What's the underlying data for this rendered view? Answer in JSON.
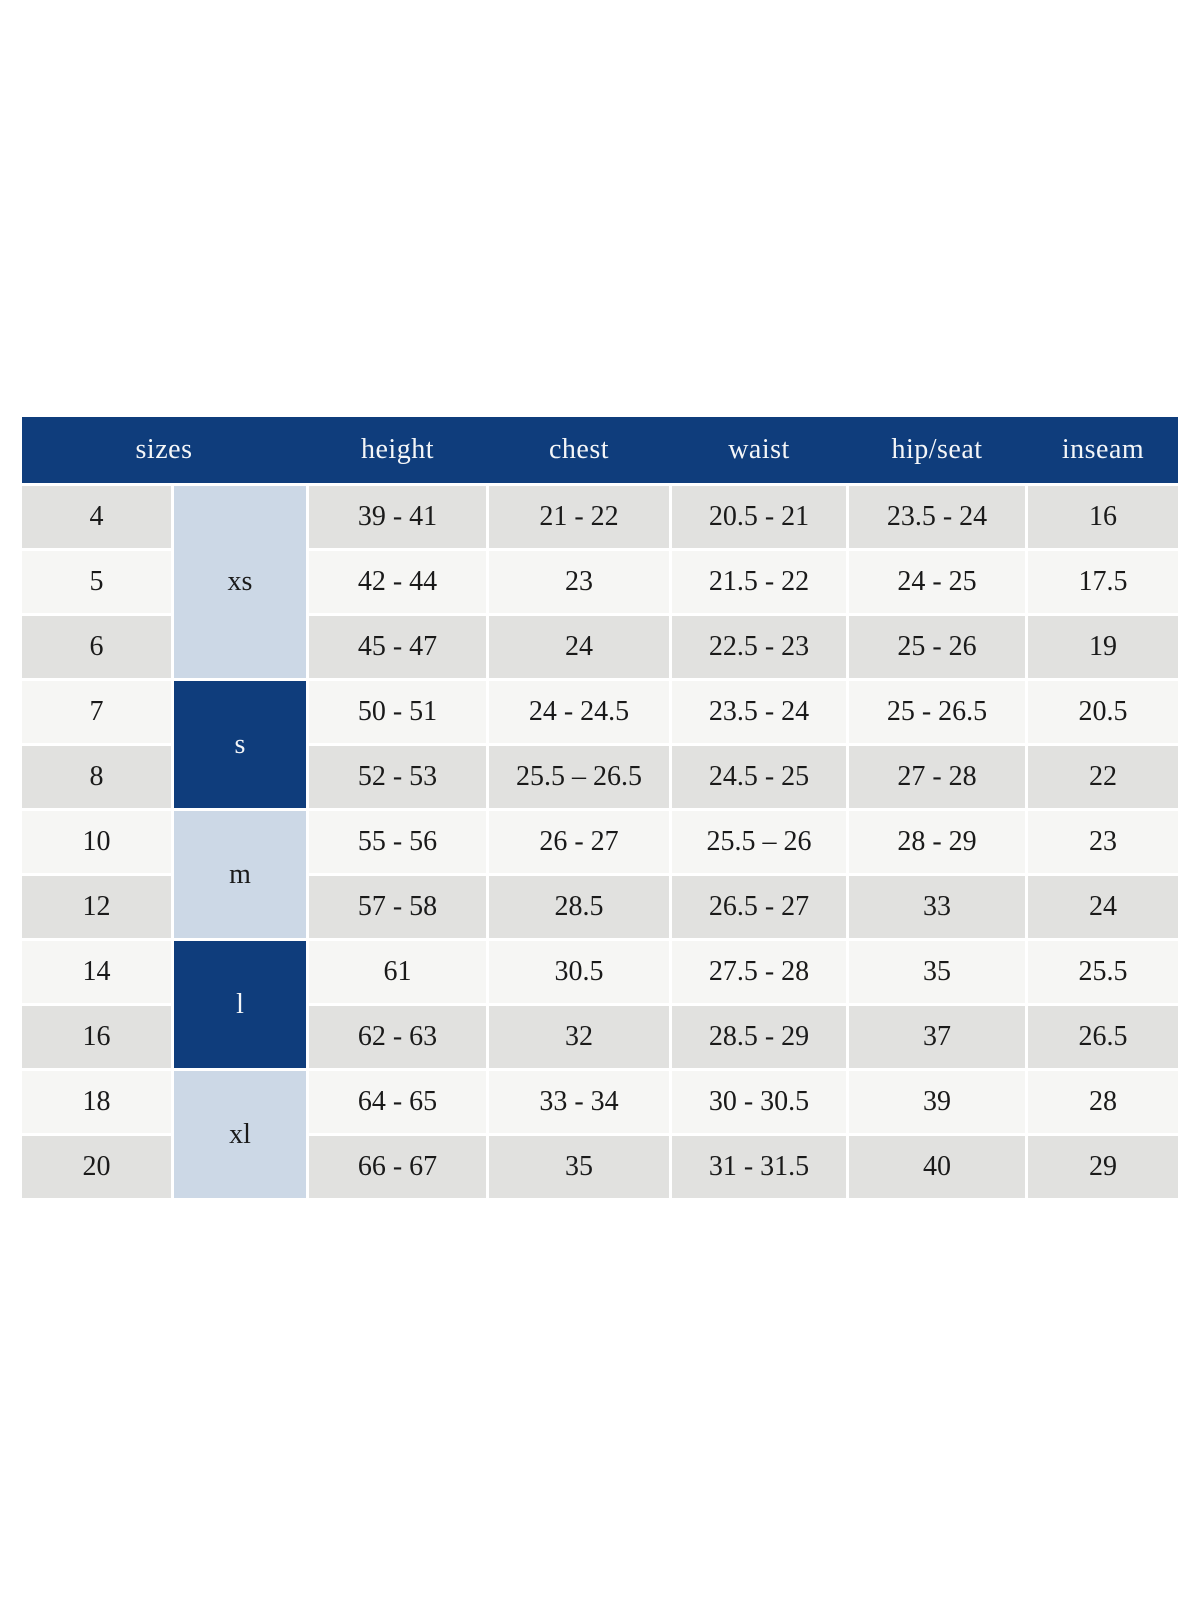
{
  "chart_data": {
    "type": "table",
    "header": {
      "sizes": "sizes",
      "height": "height",
      "chest": "chest",
      "waist": "waist",
      "hip_seat": "hip/seat",
      "inseam": "inseam"
    },
    "rows": [
      {
        "size": "4",
        "group": "xs",
        "height": "39 - 41",
        "chest": "21 - 22",
        "waist": "20.5 - 21",
        "hip_seat": "23.5 - 24",
        "inseam": "16"
      },
      {
        "size": "5",
        "group": "xs",
        "height": "42 - 44",
        "chest": "23",
        "waist": "21.5 - 22",
        "hip_seat": "24 - 25",
        "inseam": "17.5"
      },
      {
        "size": "6",
        "group": "xs",
        "height": "45 - 47",
        "chest": "24",
        "waist": "22.5 - 23",
        "hip_seat": "25 - 26",
        "inseam": "19"
      },
      {
        "size": "7",
        "group": "s",
        "height": "50 - 51",
        "chest": "24 - 24.5",
        "waist": "23.5 - 24",
        "hip_seat": "25 - 26.5",
        "inseam": "20.5"
      },
      {
        "size": "8",
        "group": "s",
        "height": "52 - 53",
        "chest": "25.5 – 26.5",
        "waist": "24.5 - 25",
        "hip_seat": "27 - 28",
        "inseam": "22"
      },
      {
        "size": "10",
        "group": "m",
        "height": "55 - 56",
        "chest": "26 - 27",
        "waist": "25.5 – 26",
        "hip_seat": "28 - 29",
        "inseam": "23"
      },
      {
        "size": "12",
        "group": "m",
        "height": "57 - 58",
        "chest": "28.5",
        "waist": "26.5 - 27",
        "hip_seat": "33",
        "inseam": "24"
      },
      {
        "size": "14",
        "group": "l",
        "height": "61",
        "chest": "30.5",
        "waist": "27.5 - 28",
        "hip_seat": "35",
        "inseam": "25.5"
      },
      {
        "size": "16",
        "group": "l",
        "height": "62 - 63",
        "chest": "32",
        "waist": "28.5 - 29",
        "hip_seat": "37",
        "inseam": "26.5"
      },
      {
        "size": "18",
        "group": "xl",
        "height": "64 - 65",
        "chest": "33 - 34",
        "waist": "30 - 30.5",
        "hip_seat": "39",
        "inseam": "28"
      },
      {
        "size": "20",
        "group": "xl",
        "height": "66 - 67",
        "chest": "35",
        "waist": "31 - 31.5",
        "hip_seat": "40",
        "inseam": "29"
      }
    ],
    "colors": {
      "page_bg": "#ffffff",
      "header_bg": "#0f3d7c",
      "header_text": "#f4f6f8",
      "group_light_bg": "#ccd8e6",
      "group_light_text": "#1a1a1a",
      "group_dark_bg": "#0f3d7c",
      "group_dark_text": "#f4f6f8",
      "row_gray": "#e1e1df",
      "row_light": "#f6f6f4",
      "cell_text": "#1a1a1a"
    }
  }
}
